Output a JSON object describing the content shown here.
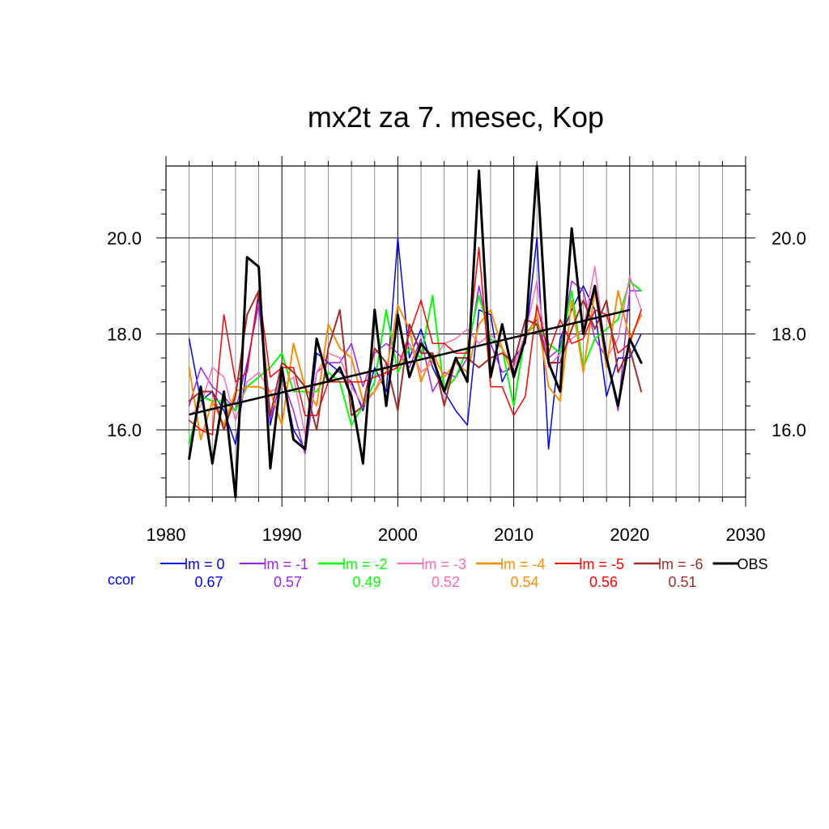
{
  "chart_data": {
    "type": "line",
    "title": "mx2t za 7. mesec, Kop",
    "xlabel": "",
    "ylabel": "",
    "xlim": [
      1980,
      2030
    ],
    "ylim": [
      14.6,
      21.5
    ],
    "x_ticks": [
      "1980",
      "1990",
      "2000",
      "2010",
      "2020",
      "2030"
    ],
    "y_ticks": [
      "16.0",
      "18.0",
      "20.0"
    ],
    "grid": true,
    "x": [
      1982,
      1983,
      1984,
      1985,
      1986,
      1987,
      1988,
      1989,
      1990,
      1991,
      1992,
      1993,
      1994,
      1995,
      1996,
      1997,
      1998,
      1999,
      2000,
      2001,
      2002,
      2003,
      2004,
      2005,
      2006,
      2007,
      2008,
      2009,
      2010,
      2011,
      2012,
      2013,
      2014,
      2015,
      2016,
      2017,
      2018,
      2019,
      2020,
      2021
    ],
    "series": [
      {
        "name": "lm = 0",
        "color": "#0000ff",
        "width": 1.5,
        "values": [
          17.9,
          16.6,
          16.8,
          16.4,
          15.7,
          17.3,
          18.8,
          16.1,
          17.2,
          16.0,
          15.6,
          17.6,
          17.4,
          17.2,
          17.0,
          16.4,
          17.3,
          16.8,
          20.0,
          17.5,
          18.1,
          17.3,
          16.8,
          16.4,
          16.1,
          18.5,
          18.4,
          17.0,
          17.5,
          17.8,
          20.0,
          15.6,
          17.9,
          18.5,
          19.0,
          18.5,
          16.7,
          17.5,
          17.5,
          18.0
        ]
      },
      {
        "name": "lm = -1",
        "color": "#a020f0",
        "width": 1.5,
        "values": [
          16.5,
          17.3,
          16.9,
          16.7,
          16.4,
          17.4,
          18.6,
          16.2,
          17.1,
          16.4,
          15.5,
          17.2,
          17.4,
          17.4,
          17.8,
          16.9,
          17.6,
          17.8,
          17.6,
          17.3,
          17.9,
          16.8,
          17.2,
          17.1,
          17.5,
          19.0,
          17.8,
          17.2,
          17.3,
          18.0,
          18.3,
          17.5,
          17.7,
          19.1,
          18.9,
          17.9,
          17.5,
          16.4,
          18.9,
          18.9
        ]
      },
      {
        "name": "lm = -2",
        "color": "#00ff00",
        "width": 2,
        "values": [
          15.7,
          16.7,
          16.6,
          16.6,
          16.4,
          16.9,
          17.1,
          17.3,
          17.6,
          16.8,
          16.8,
          16.8,
          17.2,
          17.0,
          16.1,
          16.5,
          17.0,
          18.5,
          17.2,
          17.7,
          17.5,
          18.8,
          16.8,
          17.1,
          17.7,
          18.8,
          17.9,
          17.7,
          16.5,
          18.0,
          18.2,
          17.8,
          17.6,
          18.9,
          17.3,
          17.9,
          18.1,
          18.3,
          19.1,
          18.9
        ]
      },
      {
        "name": "lm = -3",
        "color": "#ff69b4",
        "width": 1.5,
        "values": [
          16.3,
          16.5,
          17.3,
          17.1,
          16.2,
          17.0,
          17.2,
          16.8,
          16.9,
          17.1,
          15.9,
          17.2,
          17.6,
          17.5,
          16.9,
          16.5,
          16.8,
          17.4,
          17.3,
          17.8,
          17.2,
          17.4,
          17.8,
          17.9,
          18.1,
          17.8,
          18.0,
          17.7,
          17.3,
          18.0,
          19.1,
          17.3,
          17.6,
          17.9,
          18.1,
          19.4,
          17.5,
          17.9,
          19.2,
          18.5
        ]
      },
      {
        "name": "lm = -4",
        "color": "#ff8c00",
        "width": 2,
        "values": [
          17.3,
          15.8,
          16.6,
          16.1,
          16.8,
          16.9,
          16.9,
          16.8,
          16.1,
          17.8,
          16.9,
          16.5,
          18.2,
          17.7,
          17.5,
          16.6,
          16.8,
          17.2,
          18.6,
          18.1,
          17.0,
          17.6,
          17.1,
          17.4,
          17.2,
          18.2,
          18.5,
          17.7,
          17.1,
          17.9,
          18.4,
          16.9,
          16.6,
          18.7,
          17.2,
          18.9,
          17.3,
          18.9,
          17.9,
          18.4
        ]
      },
      {
        "name": "lm = -5",
        "color": "#ff0000",
        "width": 1.5,
        "values": [
          16.2,
          16.0,
          15.9,
          18.4,
          17.0,
          17.2,
          18.9,
          17.1,
          17.3,
          17.3,
          16.3,
          16.3,
          17.0,
          17.0,
          17.0,
          17.0,
          17.1,
          17.2,
          17.3,
          18.0,
          18.7,
          17.8,
          17.8,
          17.6,
          17.6,
          19.8,
          16.9,
          16.9,
          16.3,
          16.7,
          18.6,
          17.6,
          18.3,
          17.8,
          17.9,
          18.5,
          18.4,
          17.6,
          17.8,
          18.5
        ]
      },
      {
        "name": "lm = -6",
        "color": "#a52a2a",
        "width": 2,
        "values": [
          16.6,
          16.8,
          16.8,
          16.0,
          16.7,
          18.4,
          18.9,
          16.3,
          17.4,
          17.2,
          16.9,
          16.0,
          17.7,
          18.5,
          16.3,
          16.5,
          17.7,
          17.4,
          16.4,
          18.2,
          17.6,
          17.6,
          16.5,
          17.5,
          17.5,
          17.3,
          17.5,
          17.6,
          17.4,
          18.3,
          18.2,
          17.4,
          17.4,
          18.1,
          18.7,
          18.1,
          18.7,
          17.2,
          17.7,
          16.8
        ]
      },
      {
        "name": "OBS",
        "color": "#000000",
        "width": 3,
        "values": [
          15.4,
          16.9,
          15.3,
          16.8,
          14.6,
          19.6,
          19.4,
          15.2,
          17.3,
          15.8,
          15.6,
          17.9,
          17.0,
          17.3,
          16.7,
          15.3,
          18.5,
          16.5,
          18.4,
          17.1,
          17.8,
          17.5,
          16.8,
          17.5,
          17.0,
          21.4,
          17.1,
          18.2,
          17.1,
          17.9,
          21.5,
          17.4,
          16.8,
          20.2,
          18.0,
          19.0,
          17.5,
          16.5,
          17.9,
          17.4
        ]
      }
    ],
    "trend": {
      "x": [
        1982,
        2020
      ],
      "y": [
        16.32,
        18.5
      ],
      "color": "#000000",
      "width": 2.5
    },
    "legend_label": "ccor",
    "legend_label_color": "#0000ff",
    "ccor_values": [
      "0.67",
      "0.57",
      "0.49",
      "0.52",
      "0.54",
      "0.56",
      "0.51"
    ],
    "legend_placement": "bottom"
  }
}
